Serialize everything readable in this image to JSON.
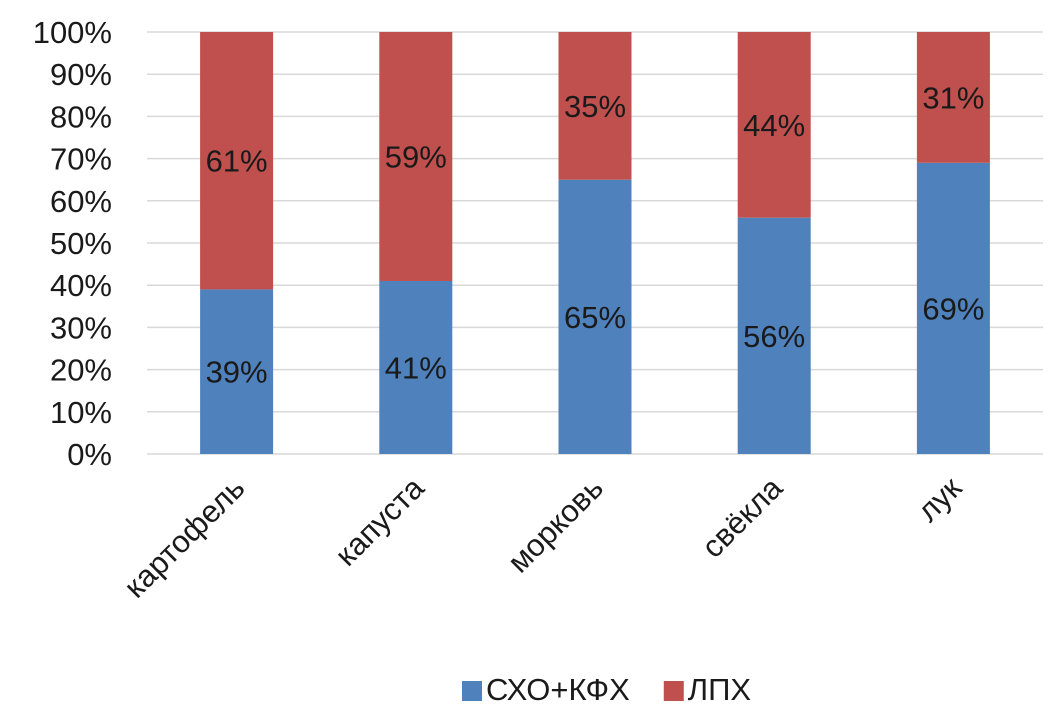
{
  "chart_data": {
    "type": "bar",
    "stacked": true,
    "percent_stacked": true,
    "categories": [
      "картофель",
      "капуста",
      "морковь",
      "свёкла",
      "лук"
    ],
    "series": [
      {
        "name": "СХО+КФХ",
        "color": "#4f81bd",
        "values": [
          39,
          41,
          65,
          56,
          69
        ],
        "labels": [
          "39%",
          "41%",
          "65%",
          "56%",
          "69%"
        ]
      },
      {
        "name": "ЛПХ",
        "color": "#c0504d",
        "values": [
          61,
          59,
          35,
          44,
          31
        ],
        "labels": [
          "61%",
          "59%",
          "35%",
          "44%",
          "31%"
        ]
      }
    ],
    "ylim": [
      0,
      100
    ],
    "yticks": [
      "0%",
      "10%",
      "20%",
      "30%",
      "40%",
      "50%",
      "60%",
      "70%",
      "80%",
      "90%",
      "100%"
    ],
    "grid": true,
    "legend_position": "bottom",
    "category_label_rotation": -45
  }
}
